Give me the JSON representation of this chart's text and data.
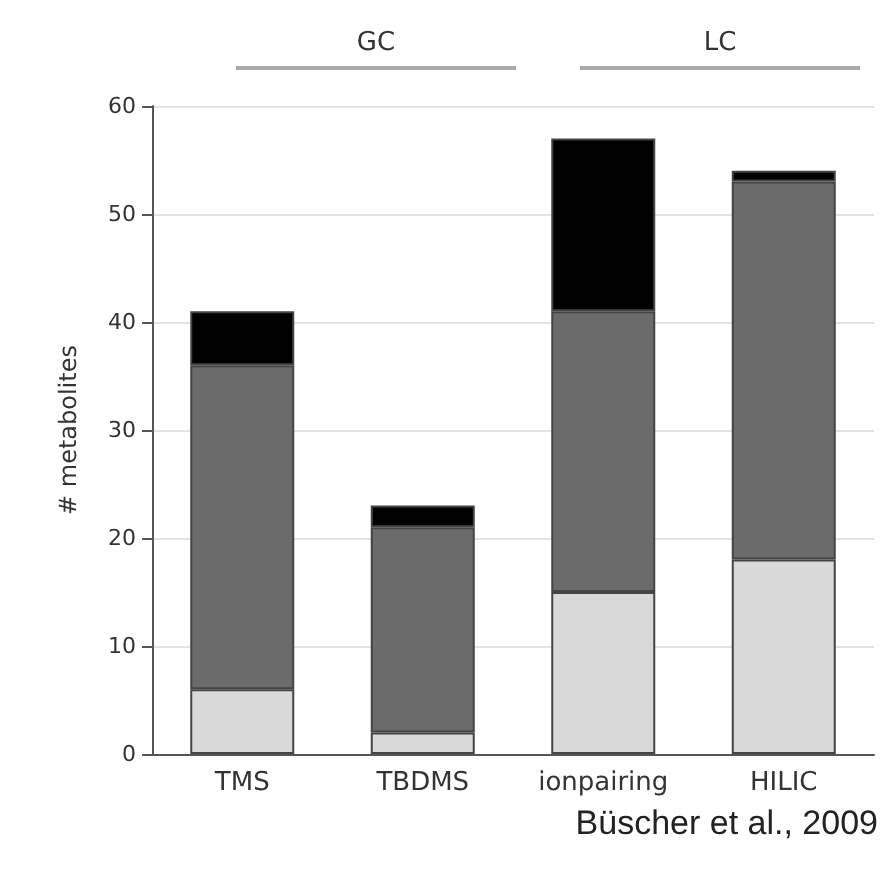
{
  "chart_data": {
    "type": "bar",
    "stacked": true,
    "ylabel": "# metabolites",
    "categories": [
      "TMS",
      "TBDMS",
      "ionpairing",
      "HILIC"
    ],
    "series": [
      {
        "color": "#d9d9d9",
        "values": [
          6,
          2,
          15,
          18
        ]
      },
      {
        "color": "#6b6b6b",
        "values": [
          30,
          19,
          26,
          35
        ]
      },
      {
        "color": "#000000",
        "values": [
          5,
          2,
          16,
          1
        ]
      }
    ],
    "ylim": [
      0,
      60
    ],
    "yticks": [
      0,
      10,
      20,
      30,
      40,
      50,
      60
    ],
    "grid": "y",
    "annotations": [
      "GC",
      "LC",
      "Büscher et al., 2009"
    ]
  }
}
